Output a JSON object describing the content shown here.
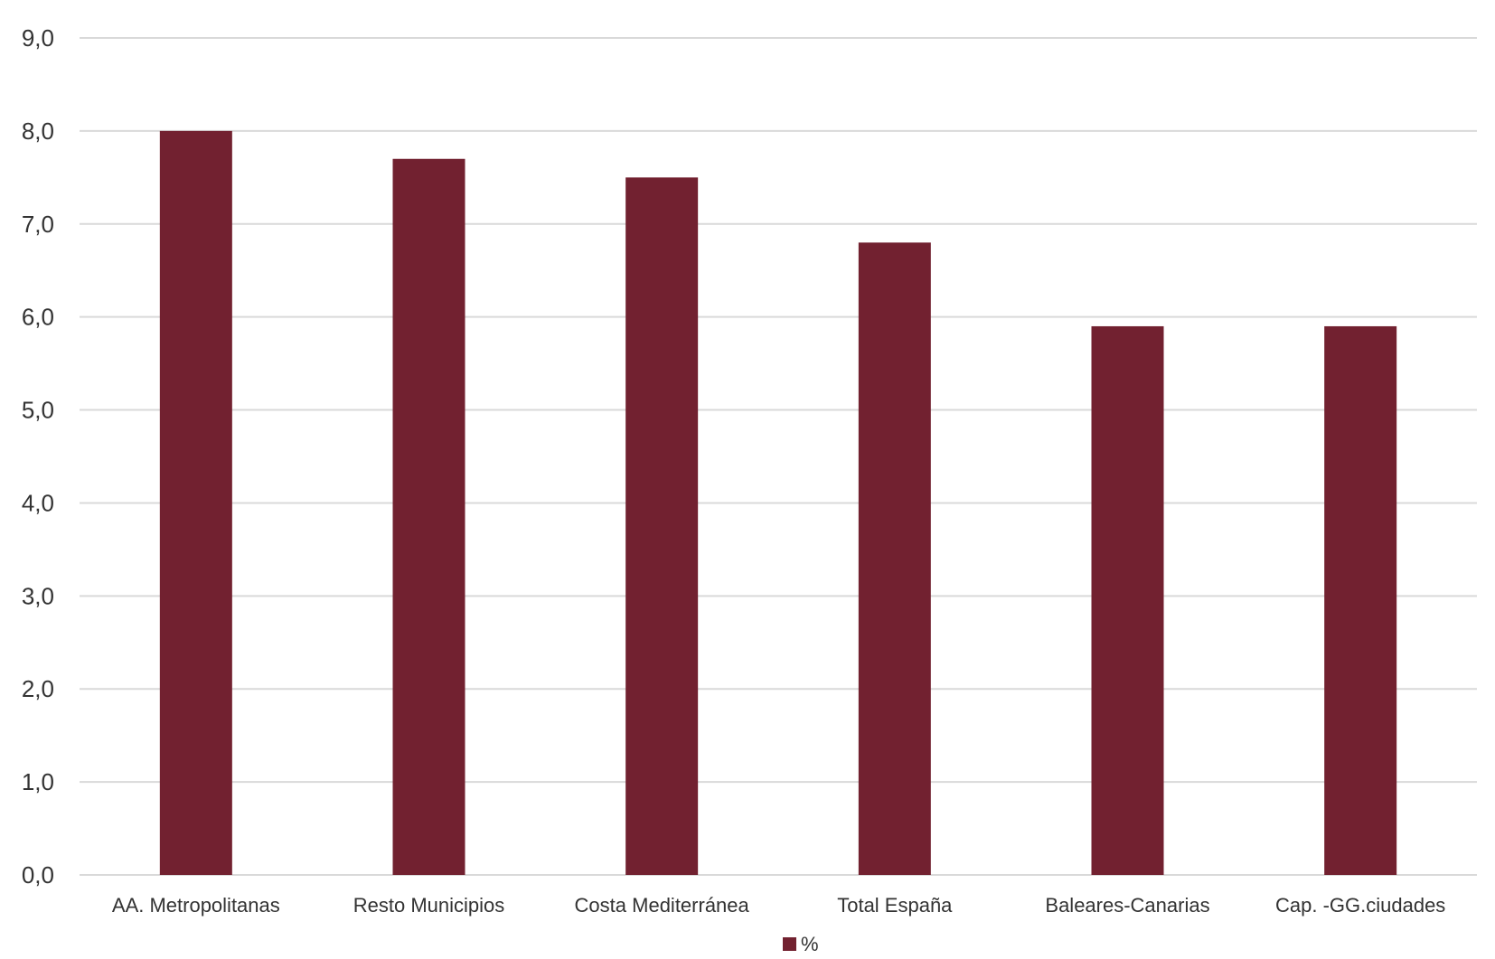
{
  "chart_data": {
    "type": "bar",
    "categories": [
      "AA. Metropolitanas",
      "Resto Municipios",
      "Costa Mediterránea",
      "Total España",
      "Baleares-Canarias",
      "Cap. -GG.ciudades"
    ],
    "series": [
      {
        "name": "%",
        "values": [
          8.0,
          7.7,
          7.5,
          6.8,
          5.9,
          5.9
        ],
        "color": "#722130"
      }
    ],
    "ylim": [
      0,
      9
    ],
    "y_ticks": [
      "0,0",
      "1,0",
      "2,0",
      "3,0",
      "4,0",
      "5,0",
      "6,0",
      "7,0",
      "8,0",
      "9,0"
    ],
    "grid": true,
    "legend": "bottom-center",
    "title": "",
    "xlabel": "",
    "ylabel": ""
  }
}
